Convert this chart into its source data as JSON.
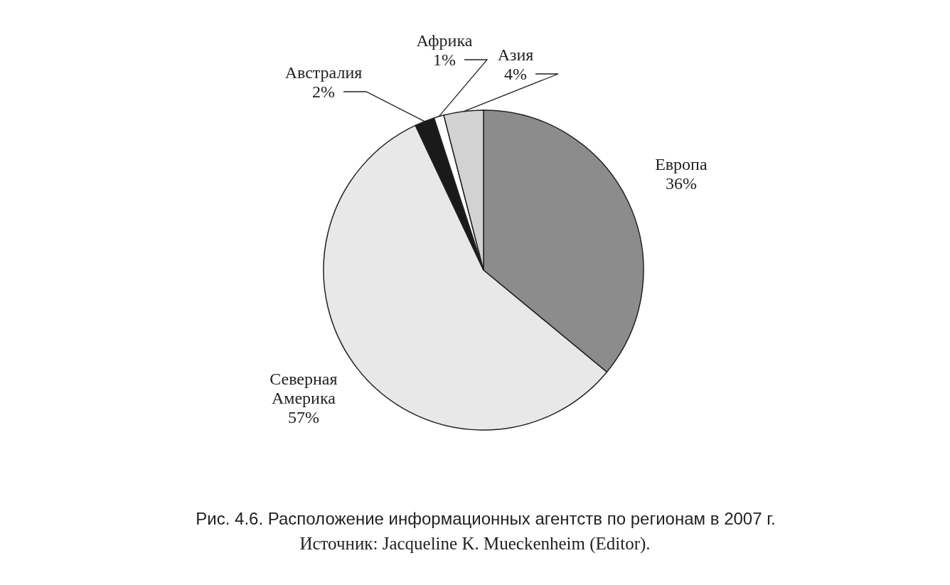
{
  "chart_data": {
    "type": "pie",
    "title": "Рис. 4.6. Расположение информационных агентств по регионам в 2007 г.",
    "categories": [
      "Европа",
      "Северная Америка",
      "Австралия",
      "Африка",
      "Азия"
    ],
    "values": [
      36,
      57,
      2,
      1,
      4
    ],
    "value_labels": [
      "36%",
      "57%",
      "2%",
      "1%",
      "4%"
    ],
    "colors": [
      "#8c8c8c",
      "#e8e8e8",
      "#1a1a1a",
      "#ffffff",
      "#d2d2d2"
    ],
    "annotations": [
      "Источник: Jacqueline K. Mueckenheim (Editor)."
    ]
  }
}
